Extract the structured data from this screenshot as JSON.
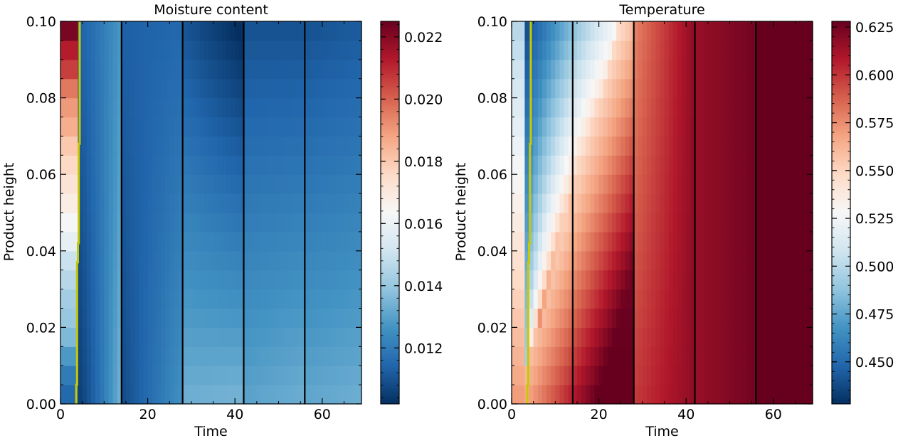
{
  "chart_data": [
    {
      "type": "heatmap",
      "title": "Moisture content",
      "xlabel": "Time",
      "ylabel": "Product height",
      "xlim": [
        0,
        69
      ],
      "ylim": [
        0,
        0.1
      ],
      "xticks": [
        0,
        20,
        40,
        60
      ],
      "xtick_labels": [
        "0",
        "20",
        "40",
        "60"
      ],
      "yticks": [
        0,
        0.02,
        0.04,
        0.06,
        0.08,
        0.1
      ],
      "ytick_labels": [
        "0.00",
        "0.02",
        "0.04",
        "0.06",
        "0.08",
        "0.10"
      ],
      "colormap": "RdBu_r",
      "colorbar": {
        "vmin": 0.0102,
        "vmax": 0.0225,
        "ticks": [
          0.012,
          0.014,
          0.016,
          0.018,
          0.02,
          0.022
        ],
        "tick_labels": [
          "0.012",
          "0.014",
          "0.016",
          "0.018",
          "0.020",
          "0.022"
        ]
      },
      "phase_boundaries": [
        14,
        28,
        42,
        56
      ],
      "front_line": {
        "color": "#c8c800",
        "points": [
          [
            3.6,
            0.0
          ],
          [
            3.6,
            0.005
          ],
          [
            3.8,
            0.005
          ],
          [
            3.8,
            0.037
          ],
          [
            4.0,
            0.037
          ],
          [
            4.0,
            0.042
          ],
          [
            4.2,
            0.042
          ],
          [
            4.2,
            0.068
          ],
          [
            4.4,
            0.068
          ],
          [
            4.4,
            0.1
          ]
        ]
      },
      "field": {
        "time_breaks": [
          0,
          3.8,
          14,
          28,
          42,
          56,
          69
        ],
        "height_profile_initial": [
          0.0115,
          0.012,
          0.0128,
          0.0136,
          0.014,
          0.0142,
          0.0146,
          0.015,
          0.0158,
          0.0163,
          0.0168,
          0.0172,
          0.0176,
          0.018,
          0.0186,
          0.019,
          0.0196,
          0.0206,
          0.0212,
          0.0222
        ]
      }
    },
    {
      "type": "heatmap",
      "title": "Temperature",
      "xlabel": "Time",
      "ylabel": "Product height",
      "xlim": [
        0,
        69
      ],
      "ylim": [
        0,
        0.1
      ],
      "xticks": [
        0,
        20,
        40,
        60
      ],
      "xtick_labels": [
        "0",
        "20",
        "40",
        "60"
      ],
      "yticks": [
        0,
        0.02,
        0.04,
        0.06,
        0.08,
        0.1
      ],
      "ytick_labels": [
        "0.00",
        "0.02",
        "0.04",
        "0.06",
        "0.08",
        "0.10"
      ],
      "colormap": "RdBu_r",
      "colorbar": {
        "vmin": 0.428,
        "vmax": 0.628,
        "ticks": [
          0.45,
          0.475,
          0.5,
          0.525,
          0.55,
          0.575,
          0.6,
          0.625
        ],
        "tick_labels": [
          "0.450",
          "0.475",
          "0.500",
          "0.525",
          "0.550",
          "0.575",
          "0.600",
          "0.625"
        ]
      },
      "phase_boundaries": [
        14,
        28,
        42,
        56
      ],
      "front_line": {
        "color": "#c8c800",
        "points": [
          [
            3.6,
            0.0
          ],
          [
            3.6,
            0.005
          ],
          [
            3.8,
            0.005
          ],
          [
            3.8,
            0.037
          ],
          [
            4.0,
            0.037
          ],
          [
            4.0,
            0.042
          ],
          [
            4.2,
            0.042
          ],
          [
            4.2,
            0.068
          ],
          [
            4.4,
            0.068
          ],
          [
            4.4,
            0.1
          ]
        ]
      },
      "field": {
        "bottom_initial": 0.57,
        "top_initial": 0.5,
        "top_min": 0.43,
        "final": 0.628
      }
    }
  ]
}
